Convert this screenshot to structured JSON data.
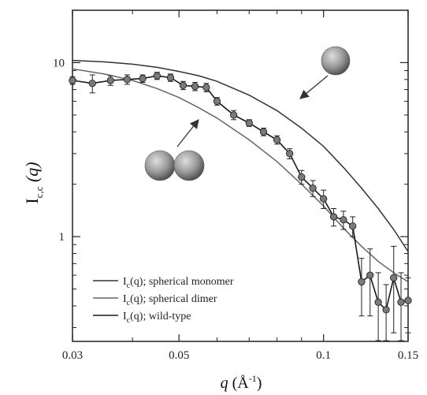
{
  "chart_data": {
    "type": "line",
    "x_scale": "log",
    "y_scale": "log",
    "xlim": [
      0.03,
      0.15
    ],
    "ylim": [
      0.25,
      20
    ],
    "x_ticks": [
      {
        "value": 0.03,
        "label": "0.03"
      },
      {
        "value": 0.05,
        "label": "0.05"
      },
      {
        "value": 0.1,
        "label": "0.1"
      },
      {
        "value": 0.15,
        "label": "0.15"
      }
    ],
    "y_ticks": [
      {
        "value": 1,
        "label": "1"
      },
      {
        "value": 10,
        "label": "10"
      }
    ],
    "xlabel": {
      "main": "q",
      "open": " (Å",
      "sup": "-1",
      "close": ")"
    },
    "ylabel": {
      "main": "I",
      "sub": "c,c",
      "arg": " (q)"
    },
    "grid": false,
    "legend_position": "bottom-left",
    "series": [
      {
        "name": "spherical monomer",
        "legend": {
          "prefix": "I",
          "sub": "c",
          "rest": "(q); spherical monomer"
        },
        "color": "#333333",
        "style": "line",
        "x": [
          0.03,
          0.035,
          0.04,
          0.045,
          0.05,
          0.055,
          0.06,
          0.07,
          0.08,
          0.09,
          0.1,
          0.11,
          0.12,
          0.13,
          0.14,
          0.15
        ],
        "y": [
          10.3,
          10.1,
          9.8,
          9.4,
          8.9,
          8.4,
          7.8,
          6.5,
          5.3,
          4.2,
          3.3,
          2.5,
          1.9,
          1.45,
          1.1,
          0.82
        ]
      },
      {
        "name": "spherical dimer",
        "legend": {
          "prefix": "I",
          "sub": "c",
          "rest": "(q); spherical dimer"
        },
        "color": "#666666",
        "style": "line",
        "x": [
          0.03,
          0.035,
          0.04,
          0.045,
          0.05,
          0.055,
          0.06,
          0.07,
          0.08,
          0.09,
          0.1,
          0.11,
          0.12,
          0.13,
          0.14,
          0.15
        ],
        "y": [
          9.2,
          8.6,
          7.9,
          7.1,
          6.3,
          5.5,
          4.8,
          3.6,
          2.7,
          2.0,
          1.5,
          1.12,
          0.88,
          0.72,
          0.62,
          0.55
        ]
      },
      {
        "name": "wild-type",
        "legend": {
          "prefix": "I",
          "sub": "c",
          "rest": "(q); wild-type"
        },
        "color": "#1a1a1a",
        "style": "line-markers",
        "x": [
          0.03,
          0.033,
          0.036,
          0.039,
          0.042,
          0.045,
          0.048,
          0.051,
          0.054,
          0.057,
          0.06,
          0.065,
          0.07,
          0.075,
          0.08,
          0.085,
          0.09,
          0.095,
          0.1,
          0.105,
          0.11,
          0.115,
          0.12,
          0.125,
          0.13,
          0.135,
          0.14,
          0.145,
          0.15
        ],
        "y": [
          7.9,
          7.6,
          7.9,
          8.0,
          8.1,
          8.4,
          8.2,
          7.4,
          7.3,
          7.2,
          6.0,
          5.0,
          4.5,
          4.0,
          3.6,
          3.0,
          2.2,
          1.9,
          1.65,
          1.3,
          1.25,
          1.15,
          0.55,
          0.6,
          0.42,
          0.38,
          0.58,
          0.42,
          0.43
        ],
        "error": [
          0.4,
          0.9,
          0.5,
          0.5,
          0.4,
          0.4,
          0.4,
          0.4,
          0.4,
          0.4,
          0.3,
          0.3,
          0.2,
          0.2,
          0.2,
          0.2,
          0.2,
          0.2,
          0.2,
          0.15,
          0.15,
          0.15,
          0.2,
          0.25,
          0.2,
          0.15,
          0.3,
          0.2,
          0.15
        ]
      }
    ]
  },
  "colors": {
    "sphere_light": "#d5d5d5",
    "sphere_mid": "#9a9a9a",
    "sphere_dark": "#4a4a4a"
  }
}
